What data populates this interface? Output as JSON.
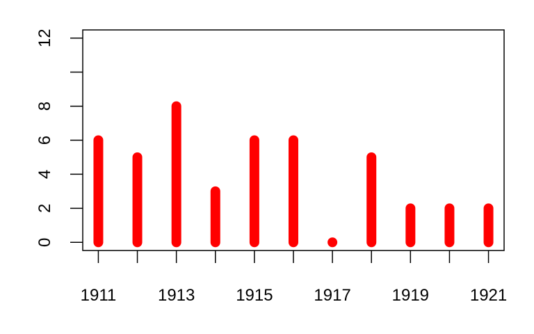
{
  "chart_data": {
    "type": "bar",
    "title": "",
    "xlabel": "",
    "ylabel": "",
    "x": [
      1911,
      1912,
      1913,
      1914,
      1915,
      1916,
      1917,
      1918,
      1919,
      1920,
      1921
    ],
    "values": [
      6,
      5,
      8,
      3,
      6,
      6,
      0,
      5,
      2,
      2,
      2
    ],
    "xlim": [
      1910.6,
      1921.4
    ],
    "ylim": [
      -0.48,
      12.48
    ],
    "x_ticks": [
      1911,
      1912,
      1913,
      1914,
      1915,
      1916,
      1917,
      1918,
      1919,
      1920,
      1921
    ],
    "x_tick_labels": [
      "1911",
      "",
      "1913",
      "",
      "1915",
      "",
      "1917",
      "",
      "1919",
      "",
      "1921"
    ],
    "y_ticks": [
      0,
      2,
      4,
      6,
      8,
      10,
      12
    ],
    "y_tick_labels": [
      "0",
      "2",
      "4",
      "6",
      "8",
      "",
      "12"
    ],
    "grid": false,
    "legend": "none",
    "colors": {
      "bar": "#ff0000",
      "axis": "#000000",
      "background": "#ffffff"
    }
  }
}
